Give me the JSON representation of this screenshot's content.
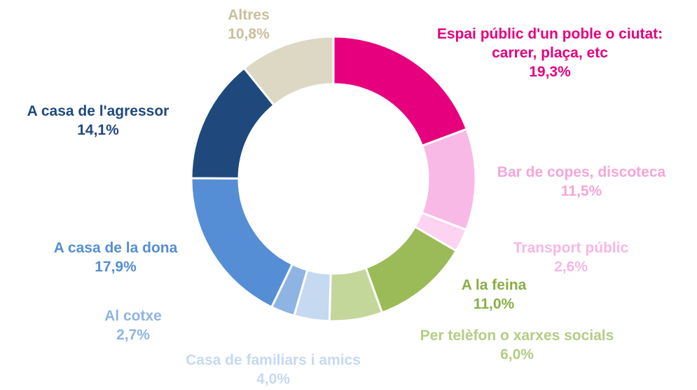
{
  "chart_data": {
    "type": "donut",
    "categories": [
      "Espai públic d'un poble o ciutat: carrer, plaça, etc",
      "Bar de copes, discoteca",
      "Transport públic",
      "A la feina",
      "Per telèfon o xarxes socials",
      "Casa de familiars i amics",
      "Al cotxe",
      "A casa de la dona",
      "A casa de l'agressor",
      "Altres"
    ],
    "values": [
      19.3,
      11.5,
      2.6,
      11.0,
      6.0,
      4.0,
      2.7,
      17.9,
      14.1,
      10.8
    ],
    "value_labels": [
      "19,3%",
      "11,5%",
      "2,6%",
      "11,0%",
      "6,0%",
      "4,0%",
      "2,7%",
      "17,9%",
      "14,1%",
      "10,8%"
    ],
    "colors": [
      "#e6007e",
      "#f9b9e6",
      "#fcd3f0",
      "#9bbb59",
      "#c4d79b",
      "#c5d9f1",
      "#8eb4e3",
      "#558ed5",
      "#1f497d",
      "#ddd8c3"
    ]
  }
}
